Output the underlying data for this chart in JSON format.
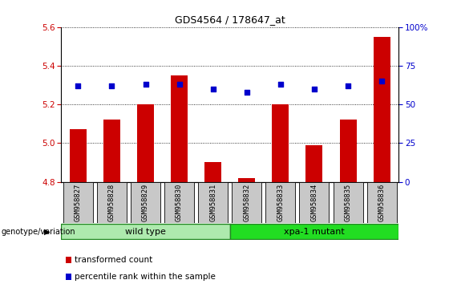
{
  "title": "GDS4564 / 178647_at",
  "samples": [
    "GSM958827",
    "GSM958828",
    "GSM958829",
    "GSM958830",
    "GSM958831",
    "GSM958832",
    "GSM958833",
    "GSM958834",
    "GSM958835",
    "GSM958836"
  ],
  "transformed_count": [
    5.07,
    5.12,
    5.2,
    5.35,
    4.9,
    4.82,
    5.2,
    4.99,
    5.12,
    5.55
  ],
  "percentile_rank": [
    62,
    62,
    63,
    63,
    60,
    58,
    63,
    60,
    62,
    65
  ],
  "ylim_left": [
    4.8,
    5.6
  ],
  "ylim_right": [
    0,
    100
  ],
  "yticks_left": [
    4.8,
    5.0,
    5.2,
    5.4,
    5.6
  ],
  "yticks_right": [
    0,
    25,
    50,
    75,
    100
  ],
  "bar_color": "#CC0000",
  "dot_color": "#0000CC",
  "grid_color": "#000000",
  "groups": [
    {
      "label": "wild type",
      "start": 0,
      "end": 5,
      "color": "#AEEAAE"
    },
    {
      "label": "xpa-1 mutant",
      "start": 5,
      "end": 10,
      "color": "#22DD22"
    }
  ],
  "group_label": "genotype/variation",
  "legend_items": [
    {
      "label": "transformed count",
      "color": "#CC0000"
    },
    {
      "label": "percentile rank within the sample",
      "color": "#0000CC"
    }
  ],
  "bar_width": 0.5,
  "tick_label_color_left": "#CC0000",
  "tick_label_color_right": "#0000CC",
  "label_box_color": "#C8C8C8",
  "title_fontsize": 9,
  "axis_fontsize": 7.5,
  "legend_fontsize": 7.5,
  "group_fontsize": 8
}
